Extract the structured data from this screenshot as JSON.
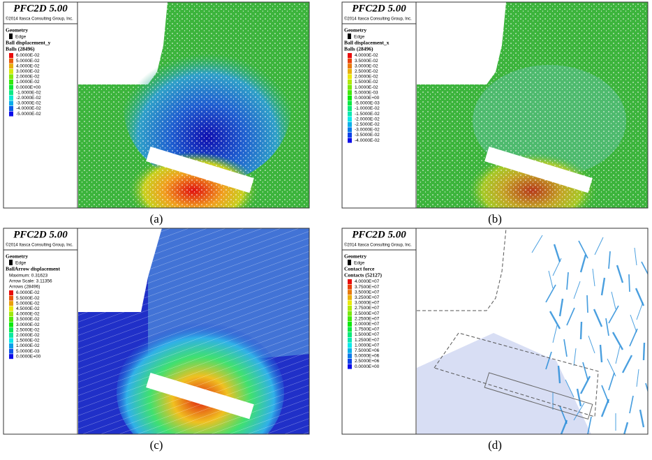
{
  "panels": [
    {
      "caption": "(a)",
      "title": "PFC2D 5.00",
      "copyright": "©2014 Itasca Consulting Group, Inc.",
      "geometry": "Geometry",
      "edge": "Edge",
      "variable": "Ball displacement_y",
      "info": [
        "Balls (28496)"
      ],
      "legend": [
        "6.0000E-02",
        "5.0000E-02",
        "4.0000E-02",
        "3.0000E-02",
        "2.0000E-02",
        "1.0000E-02",
        "0.0000E+00",
        "-1.0000E-02",
        "-2.0000E-02",
        "-3.0000E-02",
        "-4.0000E-02",
        "-5.0000E-02"
      ]
    },
    {
      "caption": "(b)",
      "title": "PFC2D 5.00",
      "copyright": "©2014 Itasca Consulting Group, Inc.",
      "geometry": "Geometry",
      "edge": "Edge",
      "variable": "Ball displacement_x",
      "info": [
        "Balls (28496)"
      ],
      "legend": [
        "4.0000E-02",
        "3.5000E-02",
        "3.0000E-02",
        "2.5000E-02",
        "2.0000E-02",
        "1.5000E-02",
        "1.0000E-02",
        "5.0000E-03",
        "0.0000E+00",
        "-5.0000E-03",
        "-1.0000E-02",
        "-1.5000E-02",
        "-2.0000E-02",
        "-2.5000E-02",
        "-3.0000E-02",
        "-3.5000E-02",
        "-4.0000E-02"
      ]
    },
    {
      "caption": "(c)",
      "title": "PFC2D 5.00",
      "copyright": "©2014 Itasca Consulting Group, Inc.",
      "geometry": "Geometry",
      "edge": "Edge",
      "variable": "BallArrow displacement",
      "info": [
        "Maximum: 0.31623",
        "Arrow Scale: 3.11356",
        "Arrows (28496)"
      ],
      "legend": [
        "6.0000E-02",
        "5.5000E-02",
        "5.0000E-02",
        "4.5000E-02",
        "4.0000E-02",
        "3.5000E-02",
        "3.0000E-02",
        "2.5000E-02",
        "2.0000E-02",
        "1.5000E-02",
        "1.0000E-02",
        "5.0000E-03",
        "0.0000E+00"
      ]
    },
    {
      "caption": "(d)",
      "title": "PFC2D 5.00",
      "copyright": "©2014 Itasca Consulting Group, Inc.",
      "geometry": "Geometry",
      "edge": "Edge",
      "variable": "Contact force",
      "info": [
        "Contacts (52127)"
      ],
      "legend": [
        "4.0000E+07",
        "3.7500E+07",
        "3.5000E+07",
        "3.2500E+07",
        "3.0000E+07",
        "2.7500E+07",
        "2.5000E+07",
        "2.2500E+07",
        "2.0000E+07",
        "1.7500E+07",
        "1.5000E+07",
        "1.2500E+07",
        "1.0000E+07",
        "7.5000E+06",
        "5.0000E+06",
        "2.5000E+06",
        "0.0000E+00"
      ]
    }
  ]
}
